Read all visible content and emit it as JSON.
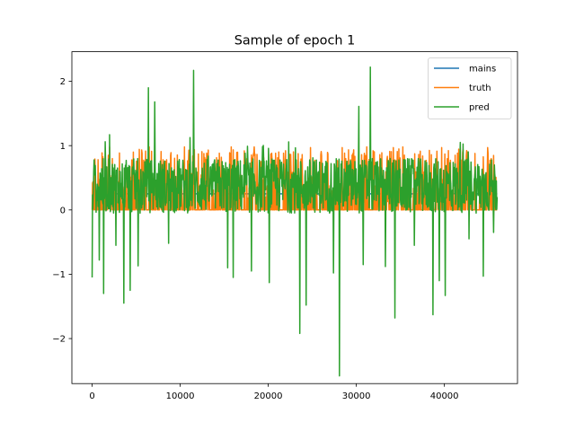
{
  "chart_data": {
    "type": "line",
    "title": "Sample of epoch 1",
    "xlabel": "",
    "ylabel": "",
    "xlim": [
      -2300,
      48300
    ],
    "ylim": [
      -2.7,
      2.46
    ],
    "xticks": [
      0,
      10000,
      20000,
      30000,
      40000
    ],
    "xtick_labels": [
      "0",
      "10000",
      "20000",
      "30000",
      "40000"
    ],
    "yticks": [
      -2,
      -1,
      0,
      1,
      2
    ],
    "ytick_labels": [
      "−2",
      "−1",
      "0",
      "1",
      "2"
    ],
    "grid": false,
    "legend_position": "top-right",
    "series": [
      {
        "name": "mains",
        "color": "#1f77b4",
        "x": [
          0,
          46000
        ],
        "values": [
          0.25,
          0.25
        ]
      },
      {
        "name": "truth",
        "color": "#ff7f0e",
        "x": [
          0,
          2000,
          2500,
          4700,
          5600,
          6500,
          9300,
          10500,
          13400,
          15800,
          16300,
          18400,
          21500,
          24800,
          25600,
          28400,
          30100,
          31200,
          31700,
          34200,
          35300,
          37600,
          39700,
          41800,
          43200,
          44900,
          46000
        ],
        "values": [
          0,
          0.98,
          0,
          0.9,
          0,
          0.98,
          0,
          0.98,
          0,
          0.98,
          0,
          0.98,
          0,
          0.97,
          0,
          0.97,
          0,
          0.98,
          0,
          0.97,
          0.98,
          0,
          0.97,
          0.97,
          0,
          0.97,
          0
        ]
      },
      {
        "name": "pred",
        "color": "#2ca02c",
        "x": [
          0,
          200,
          800,
          1300,
          2000,
          2700,
          3600,
          4300,
          5200,
          6400,
          7100,
          8700,
          11500,
          15400,
          16000,
          18100,
          20100,
          23600,
          24300,
          27400,
          28100,
          30300,
          30800,
          31600,
          33300,
          34400,
          36600,
          38700,
          39400,
          40100,
          41800,
          42800,
          44400,
          45600,
          46000
        ],
        "values": [
          -1.05,
          0.6,
          -0.78,
          -1.3,
          1.17,
          -0.55,
          -1.45,
          -1.25,
          -0.87,
          1.9,
          1.68,
          -0.52,
          2.17,
          -0.9,
          -1.05,
          -0.95,
          -1.13,
          -1.92,
          -1.48,
          -0.98,
          -2.58,
          1.61,
          -0.85,
          2.22,
          -0.88,
          -1.68,
          -0.55,
          -1.63,
          -1.1,
          -1.33,
          1.05,
          -0.45,
          -1.03,
          -0.35,
          0.2
        ]
      }
    ],
    "noise_band": {
      "y_low": -0.05,
      "y_high": 0.8,
      "x_step": 45
    }
  }
}
